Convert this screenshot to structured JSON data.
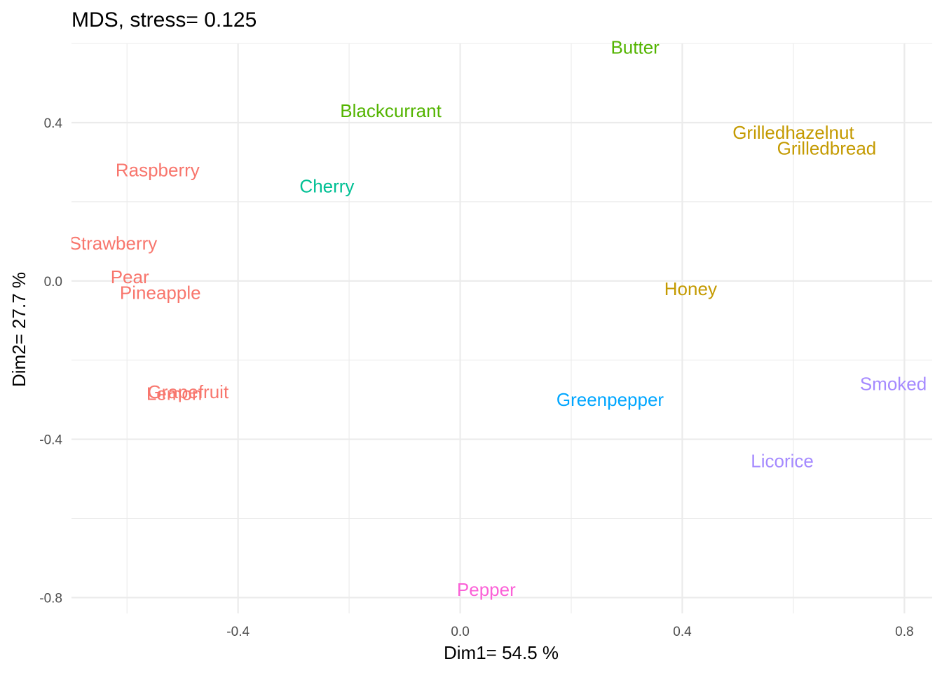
{
  "chart_data": {
    "type": "scatter",
    "title": "MDS, stress= 0.125",
    "xlabel": "Dim1= 54.5 %",
    "ylabel": "Dim2= 27.7 %",
    "xlim": [
      -0.7,
      0.85
    ],
    "ylim": [
      -0.84,
      0.6
    ],
    "x_ticks": [
      -0.4,
      0.0,
      0.4,
      0.8
    ],
    "x_tick_labels": [
      "-0.4",
      "0.0",
      "0.4",
      "0.8"
    ],
    "y_ticks": [
      -0.8,
      -0.4,
      0.0,
      0.4
    ],
    "y_tick_labels": [
      "-0.8",
      "-0.4",
      "0.0",
      "0.4"
    ],
    "grid": true,
    "legend": "none",
    "marker": "text-labels",
    "points": [
      {
        "label": "Butter",
        "x": 0.315,
        "y": 0.59,
        "color": "#53B400"
      },
      {
        "label": "Blackcurrant",
        "x": -0.125,
        "y": 0.43,
        "color": "#53B400"
      },
      {
        "label": "Grilledhazelnut",
        "x": 0.6,
        "y": 0.375,
        "color": "#C49A00"
      },
      {
        "label": "Grilledbread",
        "x": 0.66,
        "y": 0.335,
        "color": "#C49A00"
      },
      {
        "label": "Honey",
        "x": 0.415,
        "y": -0.02,
        "color": "#C49A00"
      },
      {
        "label": "Raspberry",
        "x": -0.545,
        "y": 0.28,
        "color": "#F8766D"
      },
      {
        "label": "Strawberry",
        "x": -0.625,
        "y": 0.095,
        "color": "#F8766D"
      },
      {
        "label": "Pear",
        "x": -0.595,
        "y": 0.01,
        "color": "#F8766D"
      },
      {
        "label": "Pineapple",
        "x": -0.54,
        "y": -0.03,
        "color": "#F8766D"
      },
      {
        "label": "Grapefruit",
        "x": -0.49,
        "y": -0.28,
        "color": "#F8766D"
      },
      {
        "label": "Lemon",
        "x": -0.515,
        "y": -0.285,
        "color": "#F8766D"
      },
      {
        "label": "Cherry",
        "x": -0.24,
        "y": 0.24,
        "color": "#00C094"
      },
      {
        "label": "Greenpepper",
        "x": 0.27,
        "y": -0.3,
        "color": "#00A6FF"
      },
      {
        "label": "Smoked",
        "x": 0.78,
        "y": -0.26,
        "color": "#A58AFF"
      },
      {
        "label": "Licorice",
        "x": 0.58,
        "y": -0.455,
        "color": "#A58AFF"
      },
      {
        "label": "Pepper",
        "x": 0.047,
        "y": -0.78,
        "color": "#FB61D7"
      }
    ]
  }
}
